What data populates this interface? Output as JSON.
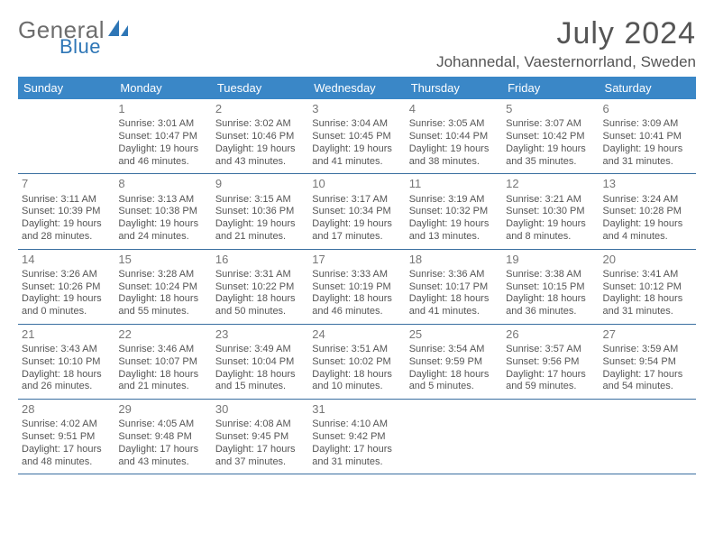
{
  "brand": {
    "left": "General",
    "right": "Blue",
    "accent": "#2e76b6"
  },
  "title": "July 2024",
  "location": "Johannedal, Vaesternorrland, Sweden",
  "colors": {
    "header_bg": "#3a87c7",
    "header_fg": "#ffffff",
    "row_border": "#3a6fa0",
    "text": "#555555"
  },
  "weekday_labels": [
    "Sunday",
    "Monday",
    "Tuesday",
    "Wednesday",
    "Thursday",
    "Friday",
    "Saturday"
  ],
  "start_weekday_index": 1,
  "days": [
    {
      "n": 1,
      "rise": "3:01 AM",
      "set": "10:47 PM",
      "dl": "19 hours and 46 minutes."
    },
    {
      "n": 2,
      "rise": "3:02 AM",
      "set": "10:46 PM",
      "dl": "19 hours and 43 minutes."
    },
    {
      "n": 3,
      "rise": "3:04 AM",
      "set": "10:45 PM",
      "dl": "19 hours and 41 minutes."
    },
    {
      "n": 4,
      "rise": "3:05 AM",
      "set": "10:44 PM",
      "dl": "19 hours and 38 minutes."
    },
    {
      "n": 5,
      "rise": "3:07 AM",
      "set": "10:42 PM",
      "dl": "19 hours and 35 minutes."
    },
    {
      "n": 6,
      "rise": "3:09 AM",
      "set": "10:41 PM",
      "dl": "19 hours and 31 minutes."
    },
    {
      "n": 7,
      "rise": "3:11 AM",
      "set": "10:39 PM",
      "dl": "19 hours and 28 minutes."
    },
    {
      "n": 8,
      "rise": "3:13 AM",
      "set": "10:38 PM",
      "dl": "19 hours and 24 minutes."
    },
    {
      "n": 9,
      "rise": "3:15 AM",
      "set": "10:36 PM",
      "dl": "19 hours and 21 minutes."
    },
    {
      "n": 10,
      "rise": "3:17 AM",
      "set": "10:34 PM",
      "dl": "19 hours and 17 minutes."
    },
    {
      "n": 11,
      "rise": "3:19 AM",
      "set": "10:32 PM",
      "dl": "19 hours and 13 minutes."
    },
    {
      "n": 12,
      "rise": "3:21 AM",
      "set": "10:30 PM",
      "dl": "19 hours and 8 minutes."
    },
    {
      "n": 13,
      "rise": "3:24 AM",
      "set": "10:28 PM",
      "dl": "19 hours and 4 minutes."
    },
    {
      "n": 14,
      "rise": "3:26 AM",
      "set": "10:26 PM",
      "dl": "19 hours and 0 minutes."
    },
    {
      "n": 15,
      "rise": "3:28 AM",
      "set": "10:24 PM",
      "dl": "18 hours and 55 minutes."
    },
    {
      "n": 16,
      "rise": "3:31 AM",
      "set": "10:22 PM",
      "dl": "18 hours and 50 minutes."
    },
    {
      "n": 17,
      "rise": "3:33 AM",
      "set": "10:19 PM",
      "dl": "18 hours and 46 minutes."
    },
    {
      "n": 18,
      "rise": "3:36 AM",
      "set": "10:17 PM",
      "dl": "18 hours and 41 minutes."
    },
    {
      "n": 19,
      "rise": "3:38 AM",
      "set": "10:15 PM",
      "dl": "18 hours and 36 minutes."
    },
    {
      "n": 20,
      "rise": "3:41 AM",
      "set": "10:12 PM",
      "dl": "18 hours and 31 minutes."
    },
    {
      "n": 21,
      "rise": "3:43 AM",
      "set": "10:10 PM",
      "dl": "18 hours and 26 minutes."
    },
    {
      "n": 22,
      "rise": "3:46 AM",
      "set": "10:07 PM",
      "dl": "18 hours and 21 minutes."
    },
    {
      "n": 23,
      "rise": "3:49 AM",
      "set": "10:04 PM",
      "dl": "18 hours and 15 minutes."
    },
    {
      "n": 24,
      "rise": "3:51 AM",
      "set": "10:02 PM",
      "dl": "18 hours and 10 minutes."
    },
    {
      "n": 25,
      "rise": "3:54 AM",
      "set": "9:59 PM",
      "dl": "18 hours and 5 minutes."
    },
    {
      "n": 26,
      "rise": "3:57 AM",
      "set": "9:56 PM",
      "dl": "17 hours and 59 minutes."
    },
    {
      "n": 27,
      "rise": "3:59 AM",
      "set": "9:54 PM",
      "dl": "17 hours and 54 minutes."
    },
    {
      "n": 28,
      "rise": "4:02 AM",
      "set": "9:51 PM",
      "dl": "17 hours and 48 minutes."
    },
    {
      "n": 29,
      "rise": "4:05 AM",
      "set": "9:48 PM",
      "dl": "17 hours and 43 minutes."
    },
    {
      "n": 30,
      "rise": "4:08 AM",
      "set": "9:45 PM",
      "dl": "17 hours and 37 minutes."
    },
    {
      "n": 31,
      "rise": "4:10 AM",
      "set": "9:42 PM",
      "dl": "17 hours and 31 minutes."
    }
  ],
  "labels": {
    "sunrise": "Sunrise:",
    "sunset": "Sunset:",
    "daylight": "Daylight:"
  }
}
